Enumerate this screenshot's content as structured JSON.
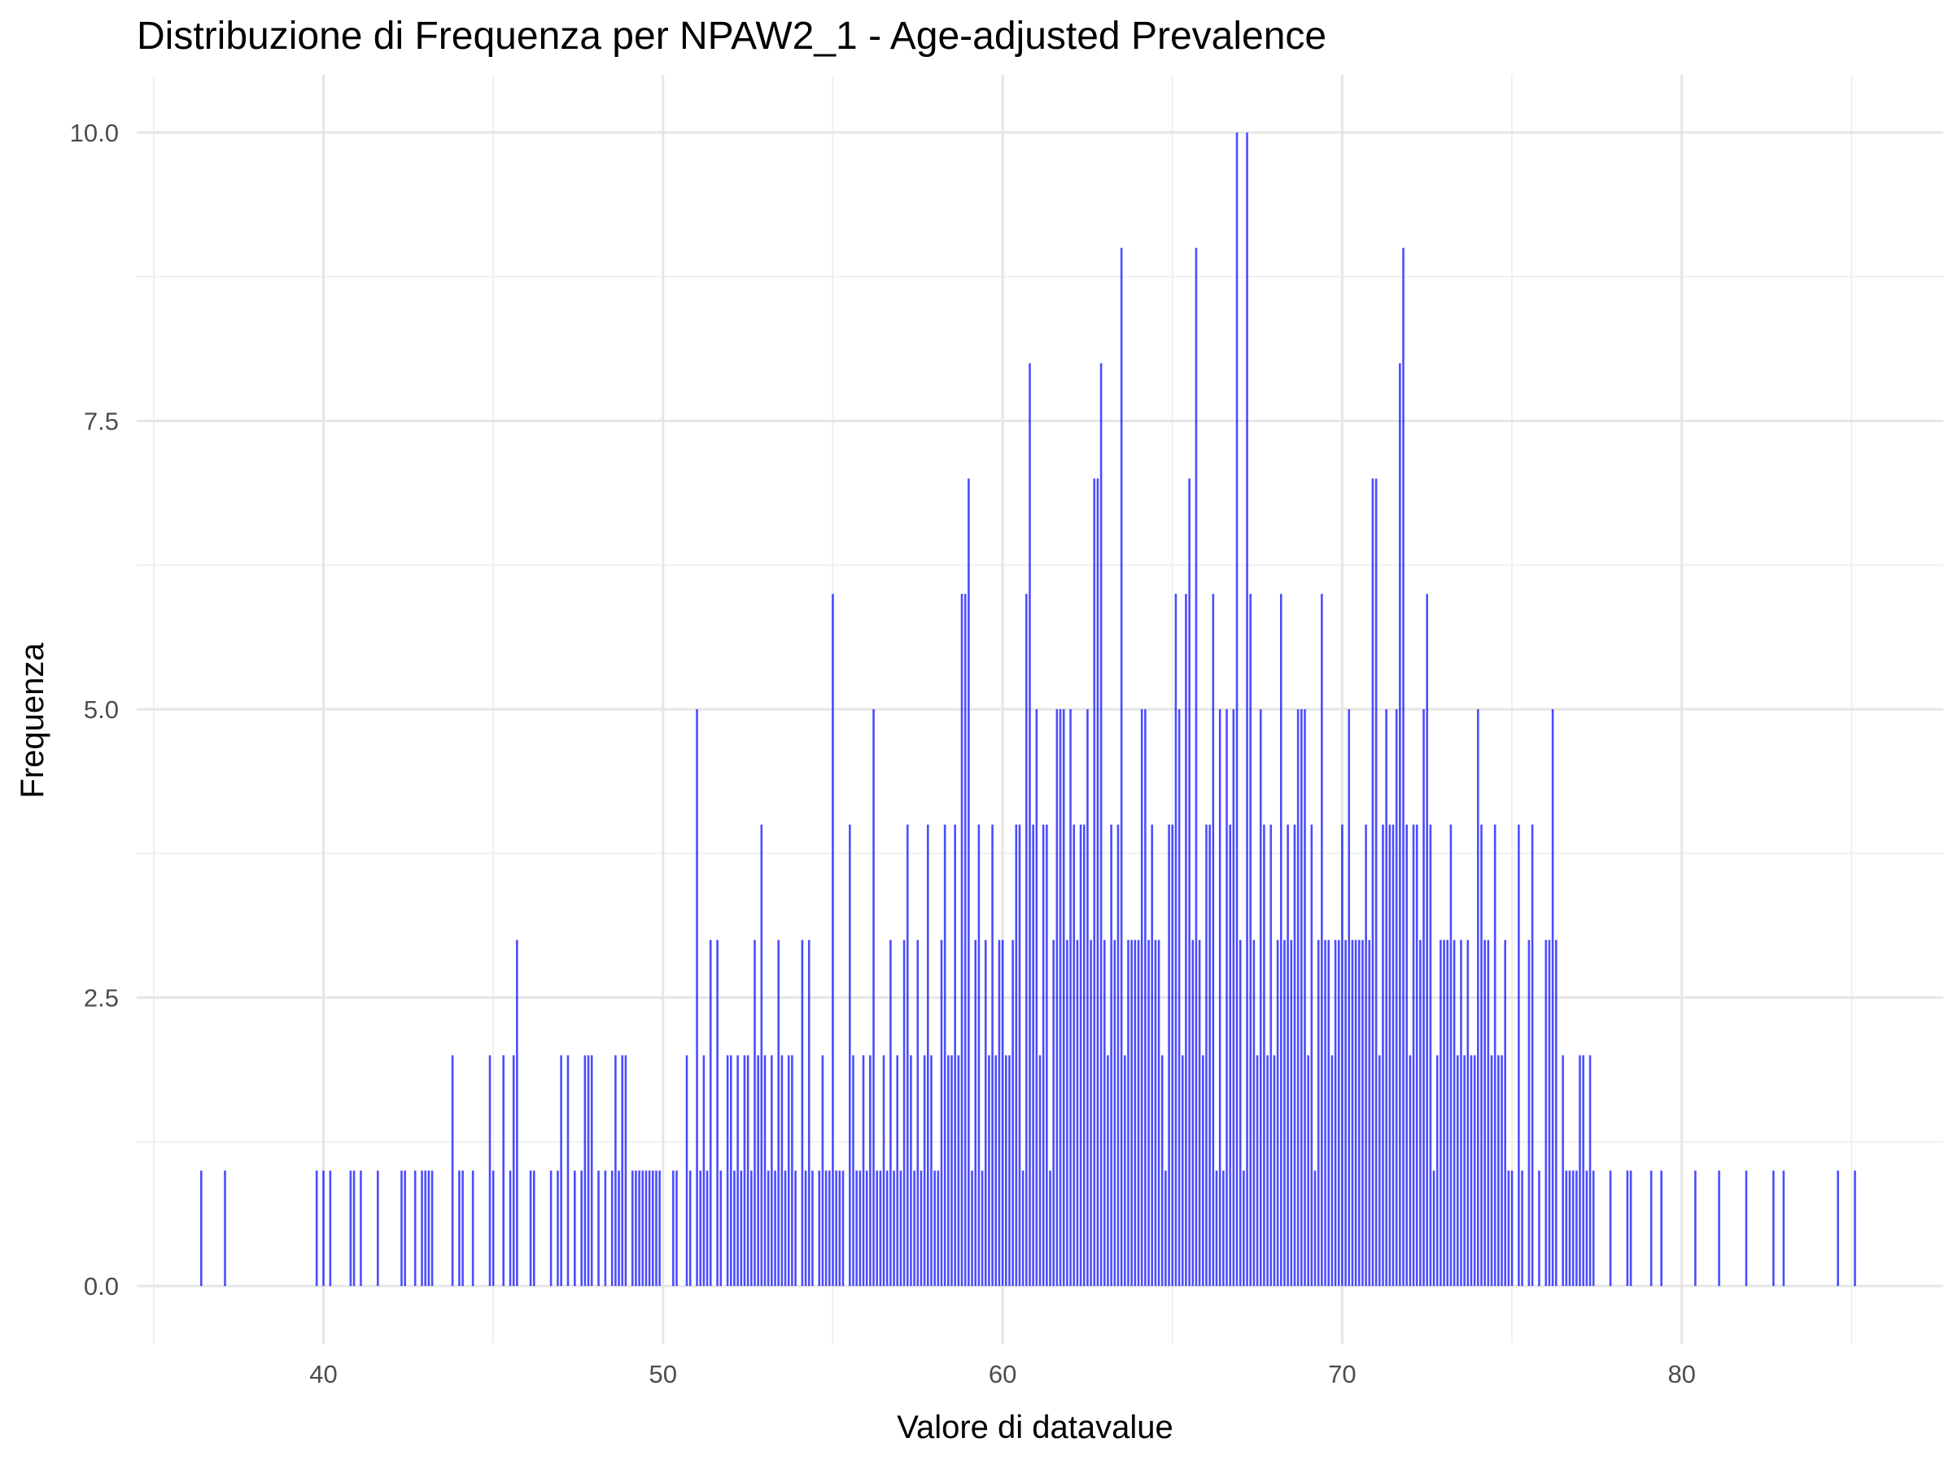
{
  "chart_data": {
    "type": "bar",
    "title": "Distribuzione di Frequenza per NPAW2_1 - Age-adjusted Prevalence",
    "xlabel": "Valore di datavalue",
    "ylabel": "Frequenza",
    "xlim": [
      34.5,
      87.7
    ],
    "ylim": [
      -0.5,
      10.5
    ],
    "x_ticks": [
      40,
      50,
      60,
      70,
      80
    ],
    "x_tick_labels": [
      "40",
      "50",
      "60",
      "70",
      "80"
    ],
    "y_ticks": [
      0,
      2.5,
      5,
      7.5,
      10
    ],
    "y_tick_labels": [
      "0.0",
      "2.5",
      "5.0",
      "7.5",
      "10.0"
    ],
    "bar_width": 0.1,
    "grid": true,
    "bar_color": "#0000ff",
    "bar_alpha": 0.7,
    "points": [
      [
        36.4,
        1
      ],
      [
        37.1,
        1
      ],
      [
        39.8,
        1
      ],
      [
        40.0,
        1
      ],
      [
        40.2,
        1
      ],
      [
        40.8,
        1
      ],
      [
        40.9,
        1
      ],
      [
        41.1,
        1
      ],
      [
        41.6,
        1
      ],
      [
        42.3,
        1
      ],
      [
        42.4,
        1
      ],
      [
        42.7,
        1
      ],
      [
        42.9,
        1
      ],
      [
        43.0,
        1
      ],
      [
        43.1,
        1
      ],
      [
        43.2,
        1
      ],
      [
        43.8,
        2
      ],
      [
        44.0,
        1
      ],
      [
        44.1,
        1
      ],
      [
        44.4,
        1
      ],
      [
        44.9,
        2
      ],
      [
        45.0,
        1
      ],
      [
        45.3,
        2
      ],
      [
        45.5,
        1
      ],
      [
        45.6,
        2
      ],
      [
        45.7,
        3
      ],
      [
        46.1,
        1
      ],
      [
        46.2,
        1
      ],
      [
        46.7,
        1
      ],
      [
        46.9,
        1
      ],
      [
        47.0,
        2
      ],
      [
        47.2,
        2
      ],
      [
        47.4,
        1
      ],
      [
        47.6,
        1
      ],
      [
        47.7,
        2
      ],
      [
        47.8,
        2
      ],
      [
        47.9,
        2
      ],
      [
        48.1,
        1
      ],
      [
        48.3,
        1
      ],
      [
        48.5,
        1
      ],
      [
        48.6,
        2
      ],
      [
        48.7,
        1
      ],
      [
        48.8,
        2
      ],
      [
        48.9,
        2
      ],
      [
        49.1,
        1
      ],
      [
        49.2,
        1
      ],
      [
        49.3,
        1
      ],
      [
        49.4,
        1
      ],
      [
        49.5,
        1
      ],
      [
        49.6,
        1
      ],
      [
        49.7,
        1
      ],
      [
        49.8,
        1
      ],
      [
        49.9,
        1
      ],
      [
        50.3,
        1
      ],
      [
        50.4,
        1
      ],
      [
        50.7,
        2
      ],
      [
        50.8,
        1
      ],
      [
        51.0,
        5
      ],
      [
        51.1,
        1
      ],
      [
        51.2,
        2
      ],
      [
        51.3,
        1
      ],
      [
        51.4,
        3
      ],
      [
        51.6,
        3
      ],
      [
        51.7,
        1
      ],
      [
        51.9,
        2
      ],
      [
        52.0,
        2
      ],
      [
        52.1,
        1
      ],
      [
        52.2,
        2
      ],
      [
        52.3,
        1
      ],
      [
        52.4,
        2
      ],
      [
        52.5,
        2
      ],
      [
        52.6,
        1
      ],
      [
        52.7,
        3
      ],
      [
        52.8,
        2
      ],
      [
        52.9,
        4
      ],
      [
        53.0,
        2
      ],
      [
        53.1,
        1
      ],
      [
        53.2,
        2
      ],
      [
        53.3,
        1
      ],
      [
        53.4,
        3
      ],
      [
        53.5,
        2
      ],
      [
        53.6,
        1
      ],
      [
        53.7,
        2
      ],
      [
        53.8,
        2
      ],
      [
        53.9,
        1
      ],
      [
        54.1,
        3
      ],
      [
        54.2,
        1
      ],
      [
        54.3,
        3
      ],
      [
        54.4,
        1
      ],
      [
        54.6,
        1
      ],
      [
        54.7,
        2
      ],
      [
        54.8,
        1
      ],
      [
        54.9,
        1
      ],
      [
        55.0,
        6
      ],
      [
        55.1,
        1
      ],
      [
        55.2,
        1
      ],
      [
        55.3,
        1
      ],
      [
        55.5,
        4
      ],
      [
        55.6,
        2
      ],
      [
        55.7,
        1
      ],
      [
        55.8,
        1
      ],
      [
        55.9,
        2
      ],
      [
        56.0,
        1
      ],
      [
        56.1,
        2
      ],
      [
        56.2,
        5
      ],
      [
        56.3,
        1
      ],
      [
        56.4,
        1
      ],
      [
        56.5,
        2
      ],
      [
        56.6,
        1
      ],
      [
        56.7,
        3
      ],
      [
        56.8,
        1
      ],
      [
        56.9,
        2
      ],
      [
        57.0,
        1
      ],
      [
        57.1,
        3
      ],
      [
        57.2,
        4
      ],
      [
        57.3,
        2
      ],
      [
        57.4,
        1
      ],
      [
        57.5,
        3
      ],
      [
        57.6,
        1
      ],
      [
        57.7,
        2
      ],
      [
        57.8,
        4
      ],
      [
        57.9,
        2
      ],
      [
        58.0,
        1
      ],
      [
        58.1,
        1
      ],
      [
        58.2,
        3
      ],
      [
        58.3,
        4
      ],
      [
        58.4,
        2
      ],
      [
        58.5,
        2
      ],
      [
        58.6,
        4
      ],
      [
        58.7,
        2
      ],
      [
        58.8,
        6
      ],
      [
        58.9,
        6
      ],
      [
        59.0,
        7
      ],
      [
        59.1,
        1
      ],
      [
        59.2,
        3
      ],
      [
        59.3,
        4
      ],
      [
        59.4,
        1
      ],
      [
        59.5,
        3
      ],
      [
        59.6,
        2
      ],
      [
        59.7,
        4
      ],
      [
        59.8,
        2
      ],
      [
        59.9,
        3
      ],
      [
        60.0,
        3
      ],
      [
        60.1,
        2
      ],
      [
        60.2,
        2
      ],
      [
        60.3,
        3
      ],
      [
        60.4,
        4
      ],
      [
        60.5,
        4
      ],
      [
        60.6,
        1
      ],
      [
        60.7,
        6
      ],
      [
        60.8,
        8
      ],
      [
        60.9,
        4
      ],
      [
        61.0,
        5
      ],
      [
        61.1,
        2
      ],
      [
        61.2,
        4
      ],
      [
        61.3,
        4
      ],
      [
        61.4,
        1
      ],
      [
        61.5,
        3
      ],
      [
        61.6,
        5
      ],
      [
        61.7,
        5
      ],
      [
        61.8,
        5
      ],
      [
        61.9,
        3
      ],
      [
        62.0,
        5
      ],
      [
        62.1,
        4
      ],
      [
        62.2,
        3
      ],
      [
        62.3,
        4
      ],
      [
        62.4,
        4
      ],
      [
        62.5,
        5
      ],
      [
        62.6,
        3
      ],
      [
        62.7,
        7
      ],
      [
        62.8,
        7
      ],
      [
        62.9,
        8
      ],
      [
        63.0,
        3
      ],
      [
        63.1,
        2
      ],
      [
        63.2,
        4
      ],
      [
        63.3,
        3
      ],
      [
        63.4,
        4
      ],
      [
        63.5,
        9
      ],
      [
        63.6,
        2
      ],
      [
        63.7,
        3
      ],
      [
        63.8,
        3
      ],
      [
        63.9,
        3
      ],
      [
        64.0,
        3
      ],
      [
        64.1,
        5
      ],
      [
        64.2,
        5
      ],
      [
        64.3,
        3
      ],
      [
        64.4,
        4
      ],
      [
        64.5,
        3
      ],
      [
        64.6,
        3
      ],
      [
        64.7,
        2
      ],
      [
        64.8,
        1
      ],
      [
        64.9,
        4
      ],
      [
        65.0,
        4
      ],
      [
        65.1,
        6
      ],
      [
        65.2,
        5
      ],
      [
        65.3,
        2
      ],
      [
        65.4,
        6
      ],
      [
        65.5,
        7
      ],
      [
        65.6,
        3
      ],
      [
        65.7,
        9
      ],
      [
        65.8,
        3
      ],
      [
        65.9,
        2
      ],
      [
        66.0,
        4
      ],
      [
        66.1,
        4
      ],
      [
        66.2,
        6
      ],
      [
        66.3,
        1
      ],
      [
        66.4,
        5
      ],
      [
        66.5,
        1
      ],
      [
        66.6,
        5
      ],
      [
        66.7,
        4
      ],
      [
        66.8,
        5
      ],
      [
        66.9,
        10
      ],
      [
        67.0,
        3
      ],
      [
        67.1,
        1
      ],
      [
        67.2,
        10
      ],
      [
        67.3,
        6
      ],
      [
        67.4,
        3
      ],
      [
        67.5,
        2
      ],
      [
        67.6,
        5
      ],
      [
        67.7,
        4
      ],
      [
        67.8,
        2
      ],
      [
        67.9,
        4
      ],
      [
        68.0,
        2
      ],
      [
        68.1,
        3
      ],
      [
        68.2,
        6
      ],
      [
        68.3,
        3
      ],
      [
        68.4,
        4
      ],
      [
        68.5,
        3
      ],
      [
        68.6,
        4
      ],
      [
        68.7,
        5
      ],
      [
        68.8,
        5
      ],
      [
        68.9,
        5
      ],
      [
        69.0,
        2
      ],
      [
        69.1,
        4
      ],
      [
        69.2,
        1
      ],
      [
        69.3,
        3
      ],
      [
        69.4,
        6
      ],
      [
        69.5,
        3
      ],
      [
        69.6,
        3
      ],
      [
        69.7,
        2
      ],
      [
        69.8,
        3
      ],
      [
        69.9,
        3
      ],
      [
        70.0,
        4
      ],
      [
        70.1,
        3
      ],
      [
        70.2,
        5
      ],
      [
        70.3,
        3
      ],
      [
        70.4,
        3
      ],
      [
        70.5,
        3
      ],
      [
        70.6,
        3
      ],
      [
        70.7,
        4
      ],
      [
        70.8,
        3
      ],
      [
        70.9,
        7
      ],
      [
        71.0,
        7
      ],
      [
        71.1,
        2
      ],
      [
        71.2,
        4
      ],
      [
        71.3,
        5
      ],
      [
        71.4,
        4
      ],
      [
        71.5,
        4
      ],
      [
        71.6,
        5
      ],
      [
        71.7,
        8
      ],
      [
        71.8,
        9
      ],
      [
        71.9,
        4
      ],
      [
        72.0,
        2
      ],
      [
        72.1,
        4
      ],
      [
        72.2,
        4
      ],
      [
        72.3,
        3
      ],
      [
        72.4,
        5
      ],
      [
        72.5,
        6
      ],
      [
        72.6,
        4
      ],
      [
        72.7,
        1
      ],
      [
        72.8,
        2
      ],
      [
        72.9,
        3
      ],
      [
        73.0,
        3
      ],
      [
        73.1,
        3
      ],
      [
        73.2,
        4
      ],
      [
        73.3,
        3
      ],
      [
        73.4,
        2
      ],
      [
        73.5,
        3
      ],
      [
        73.6,
        2
      ],
      [
        73.7,
        3
      ],
      [
        73.8,
        2
      ],
      [
        73.9,
        2
      ],
      [
        74.0,
        5
      ],
      [
        74.1,
        4
      ],
      [
        74.2,
        3
      ],
      [
        74.3,
        3
      ],
      [
        74.4,
        2
      ],
      [
        74.5,
        4
      ],
      [
        74.6,
        2
      ],
      [
        74.7,
        2
      ],
      [
        74.8,
        3
      ],
      [
        74.9,
        1
      ],
      [
        75.0,
        1
      ],
      [
        75.2,
        4
      ],
      [
        75.3,
        1
      ],
      [
        75.5,
        3
      ],
      [
        75.6,
        4
      ],
      [
        75.8,
        1
      ],
      [
        76.0,
        3
      ],
      [
        76.1,
        3
      ],
      [
        76.2,
        5
      ],
      [
        76.3,
        3
      ],
      [
        76.5,
        2
      ],
      [
        76.6,
        1
      ],
      [
        76.7,
        1
      ],
      [
        76.8,
        1
      ],
      [
        76.9,
        1
      ],
      [
        77.0,
        2
      ],
      [
        77.1,
        2
      ],
      [
        77.2,
        1
      ],
      [
        77.3,
        2
      ],
      [
        77.4,
        1
      ],
      [
        77.9,
        1
      ],
      [
        78.4,
        1
      ],
      [
        78.5,
        1
      ],
      [
        79.1,
        1
      ],
      [
        79.4,
        1
      ],
      [
        80.4,
        1
      ],
      [
        81.1,
        1
      ],
      [
        81.9,
        1
      ],
      [
        82.7,
        1
      ],
      [
        83.0,
        1
      ],
      [
        84.6,
        1
      ],
      [
        85.1,
        1
      ]
    ]
  }
}
